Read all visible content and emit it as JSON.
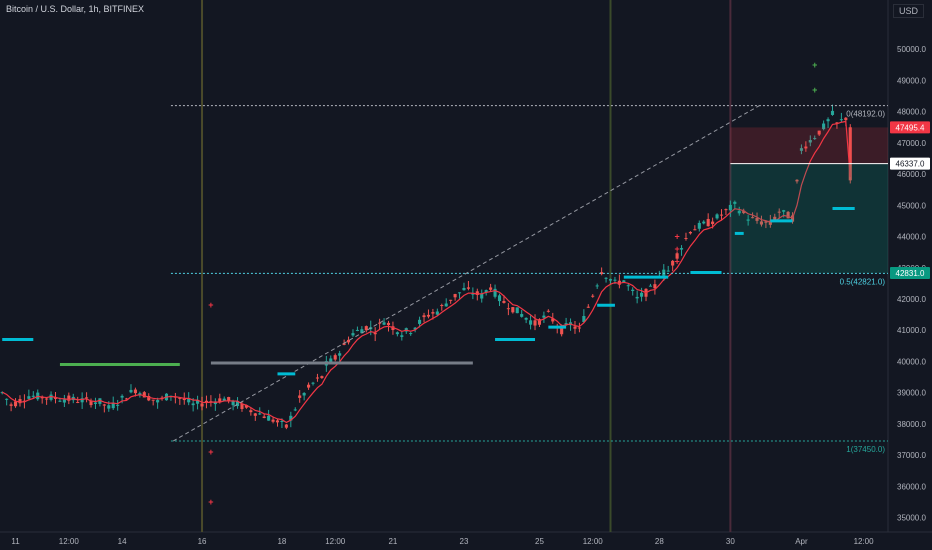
{
  "header": {
    "title": "Bitcoin / U.S. Dollar, 1h, BITFINEX",
    "unit": "USD"
  },
  "chart_data": {
    "type": "line",
    "title": "Bitcoin / U.S. Dollar, 1h, BITFINEX",
    "ylim": [
      34600,
      51000
    ],
    "grid": false,
    "y_ticks": [
      "35000.0",
      "36000.0",
      "37000.0",
      "38000.0",
      "39000.0",
      "40000.0",
      "41000.0",
      "42000.0",
      "43000.0",
      "44000.0",
      "45000.0",
      "46000.0",
      "47000.0",
      "48000.0",
      "49000.0",
      "50000.0"
    ],
    "x_ticks": [
      "11",
      "12:00",
      "14",
      "16",
      "18",
      "12:00",
      "21",
      "23",
      "25",
      "12:00",
      "28",
      "30",
      "Apr",
      "12:00"
    ],
    "price_anchors": {
      "x": [
        0,
        2,
        6,
        14,
        22,
        24,
        28,
        30,
        35,
        38,
        42,
        43,
        46,
        48,
        50,
        55,
        60,
        64,
        67,
        70,
        72,
        73,
        75,
        79,
        82,
        84,
        86,
        90,
        92,
        96,
        98,
        101,
        104,
        108,
        110,
        112,
        120,
        123,
        126,
        128,
        130,
        135,
        138,
        140,
        143,
        147,
        148,
        150,
        155,
        160,
        165,
        168,
        170,
        173,
        175,
        178,
        180,
        185,
        187,
        188,
        190
      ],
      "y": [
        39000,
        38600,
        38900,
        38800,
        38700,
        38500,
        38900,
        39100,
        38700,
        38950,
        38700,
        38600,
        38700,
        38750,
        38800,
        38500,
        38200,
        37900,
        38800,
        39300,
        39500,
        39900,
        40100,
        40900,
        41100,
        41000,
        41300,
        40900,
        41000,
        41500,
        41600,
        42000,
        42300,
        42100,
        42400,
        42000,
        41200,
        41500,
        41000,
        41200,
        41000,
        42900,
        42500,
        42600,
        42000,
        42400,
        42800,
        42900,
        44200,
        44500,
        45000,
        44600,
        44500,
        44400,
        44800,
        44600,
        46800,
        47500,
        47900,
        47600,
        47800
      ]
    },
    "levels": [
      {
        "label": "0(48192.0)",
        "value": 48192,
        "color": "#b2b5be"
      },
      {
        "label": "0.5(42821.0)",
        "value": 42821,
        "color": "#4dd0e1"
      },
      {
        "label": "1(37450.0)",
        "value": 37450,
        "color": "#26a69a"
      }
    ],
    "price_tags": [
      {
        "label": "47495.4",
        "value": 47495.4,
        "color": "#f23645"
      },
      {
        "label": "46337.0",
        "value": 46337,
        "color": "#ffffff"
      },
      {
        "label": "42831.0",
        "value": 42831,
        "color": "#089981"
      }
    ],
    "dashed_trend": {
      "from": [
        38.5,
        37450
      ],
      "to": [
        170.5,
        48192
      ]
    },
    "support_segments": [
      {
        "x0": 0,
        "x1": 7,
        "value": 40700,
        "color": "#00bcd4"
      },
      {
        "x0": 13,
        "x1": 40,
        "value": 39900,
        "color": "#4caf50"
      },
      {
        "x0": 47,
        "x1": 106,
        "value": 39950,
        "color": "#777d88"
      },
      {
        "x0": 62,
        "x1": 66,
        "value": 39600,
        "color": "#00bcd4"
      },
      {
        "x0": 111,
        "x1": 120,
        "value": 40700,
        "color": "#00bcd4"
      },
      {
        "x0": 123,
        "x1": 127,
        "value": 41100,
        "color": "#00bcd4"
      },
      {
        "x0": 134,
        "x1": 138,
        "value": 41800,
        "color": "#00bcd4"
      },
      {
        "x0": 140,
        "x1": 150,
        "value": 42700,
        "color": "#00bcd4"
      },
      {
        "x0": 155,
        "x1": 162,
        "value": 42850,
        "color": "#00bcd4"
      },
      {
        "x0": 165,
        "x1": 167,
        "value": 44100,
        "color": "#00bcd4"
      },
      {
        "x0": 173,
        "x1": 178,
        "value": 44500,
        "color": "#00bcd4"
      },
      {
        "x0": 187,
        "x1": 192,
        "value": 44900,
        "color": "#00bcd4"
      }
    ],
    "signal_marks": [
      {
        "x": 47,
        "value": 41800,
        "color": "#f23645"
      },
      {
        "x": 47,
        "value": 37100,
        "color": "#f23645"
      },
      {
        "x": 47,
        "value": 35500,
        "color": "#f23645"
      },
      {
        "x": 152,
        "value": 44000,
        "color": "#f23645"
      },
      {
        "x": 152,
        "value": 43600,
        "color": "#f23645"
      },
      {
        "x": 152,
        "value": 43200,
        "color": "#f23645"
      },
      {
        "x": 183,
        "value": 49500,
        "color": "#4caf50"
      },
      {
        "x": 183,
        "value": 48700,
        "color": "#4caf50"
      }
    ]
  }
}
